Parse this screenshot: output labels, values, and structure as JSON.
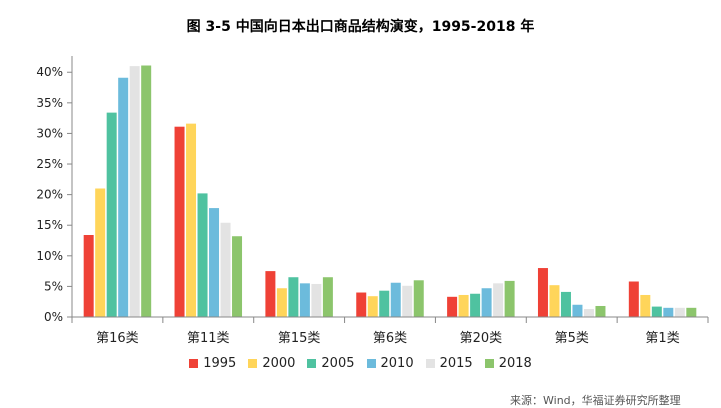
{
  "title": "图  3-5  中国向日本出口商品结构演变，1995-2018 年",
  "source_text": "来源：Wind，华福证券研究所整理",
  "chart_data": {
    "type": "bar",
    "title": "图  3-5  中国向日本出口商品结构演变，1995-2018 年",
    "xlabel": "",
    "ylabel": "",
    "ylim": [
      0,
      0.42
    ],
    "yticks": [
      "0%",
      "5%",
      "10%",
      "15%",
      "20%",
      "25%",
      "30%",
      "35%",
      "40%"
    ],
    "categories": [
      "第16类",
      "第11类",
      "第15类",
      "第6类",
      "第20类",
      "第5类",
      "第1类"
    ],
    "series": [
      {
        "name": "1995",
        "color": "#ef4136",
        "values": [
          0.134,
          0.311,
          0.075,
          0.04,
          0.033,
          0.08,
          0.058
        ]
      },
      {
        "name": "2000",
        "color": "#ffd55a",
        "values": [
          0.21,
          0.316,
          0.047,
          0.034,
          0.036,
          0.052,
          0.036
        ]
      },
      {
        "name": "2005",
        "color": "#4fc2a0",
        "values": [
          0.334,
          0.202,
          0.065,
          0.043,
          0.038,
          0.041,
          0.017
        ]
      },
      {
        "name": "2010",
        "color": "#6cbbdc",
        "values": [
          0.391,
          0.178,
          0.055,
          0.056,
          0.047,
          0.02,
          0.015
        ]
      },
      {
        "name": "2015",
        "color": "#e3e3e3",
        "values": [
          0.41,
          0.154,
          0.054,
          0.051,
          0.055,
          0.013,
          0.015
        ]
      },
      {
        "name": "2018",
        "color": "#8cc56c",
        "values": [
          0.411,
          0.132,
          0.065,
          0.06,
          0.059,
          0.018,
          0.015
        ]
      }
    ],
    "grid": false,
    "legend_position": "bottom"
  }
}
